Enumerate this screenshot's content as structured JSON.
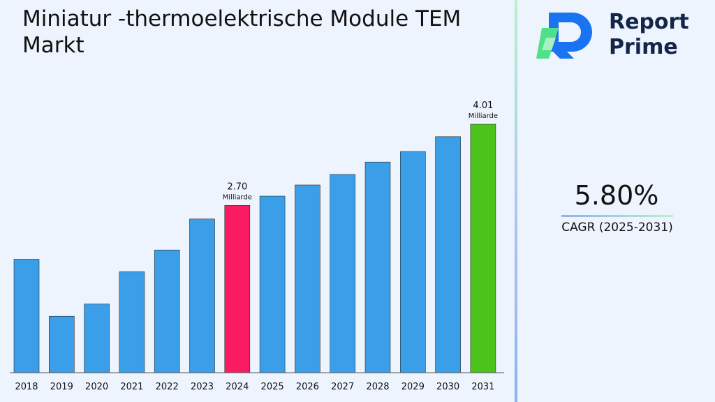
{
  "chart_data": {
    "type": "bar",
    "title": "Miniatur -thermoelektrische Module TEM Markt",
    "categories": [
      "2018",
      "2019",
      "2020",
      "2021",
      "2022",
      "2023",
      "2024",
      "2025",
      "2026",
      "2027",
      "2028",
      "2029",
      "2030",
      "2031"
    ],
    "values": [
      1.83,
      0.91,
      1.11,
      1.63,
      1.98,
      2.48,
      2.7,
      2.85,
      3.03,
      3.2,
      3.4,
      3.57,
      3.81,
      4.01
    ],
    "data_labels": [
      {
        "category": "2024",
        "value": "2.70",
        "unit": "Milliarde"
      },
      {
        "category": "2031",
        "value": "4.01",
        "unit": "Milliarde"
      }
    ],
    "colors": {
      "default": "#3a9fe8",
      "highlight_2024": "#fb1b62",
      "highlight_2031": "#4cc31a",
      "axis": "#555555"
    },
    "ylim": [
      0,
      4.01
    ],
    "grid": false,
    "xlabel": "",
    "ylabel": ""
  },
  "cagr": {
    "value": "5.80%",
    "label": "CAGR (2025-2031)"
  },
  "logo": {
    "line1": "Report",
    "line2": "Prime",
    "colors": {
      "blue": "#1a73f0",
      "green": "#4fe08a",
      "text": "#14254a"
    }
  }
}
